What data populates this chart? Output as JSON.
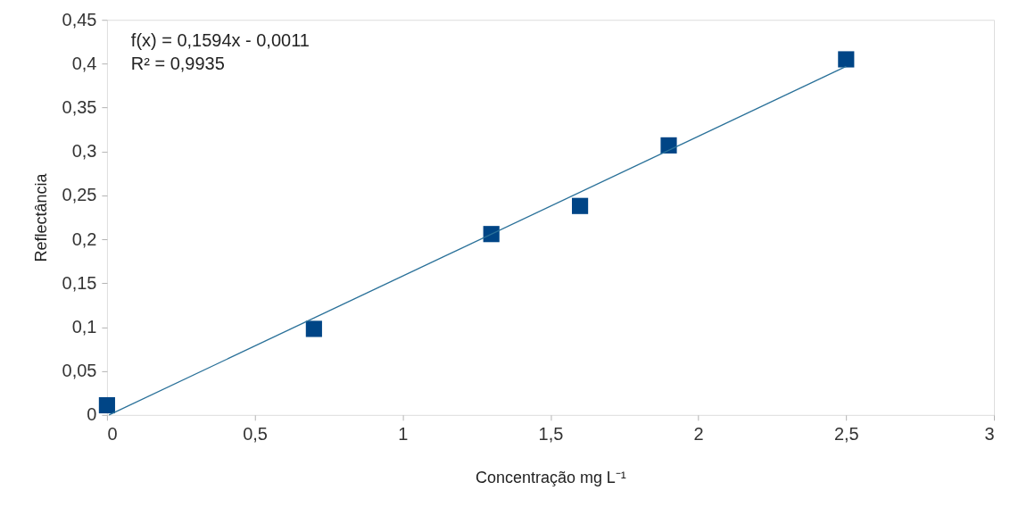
{
  "chart_data": {
    "type": "scatter",
    "xlabel": "Concentração mg L⁻¹",
    "ylabel": "Reflectância",
    "annotations": [
      "f(x) = 0,1594x - 0,0011",
      "R² = 0,9935"
    ],
    "series": [
      {
        "color": "#004586",
        "marker": "square",
        "x": [
          0,
          0.7,
          1.3,
          1.6,
          1.9,
          2.5
        ],
        "values": [
          0.011,
          0.098,
          0.206,
          0.238,
          0.307,
          0.405
        ]
      },
      {
        "type": "line",
        "color": "#2a7199",
        "marker": "none",
        "line_style": "solid",
        "x": [
          0.007,
          2.5
        ],
        "values": [
          0,
          0.397
        ]
      }
    ],
    "xlim": [
      0,
      3
    ],
    "ylim": [
      0,
      0.45
    ],
    "xticks": [
      0,
      {
        "value": 0.5,
        "label": "0,5"
      },
      1,
      {
        "value": 1.5,
        "label": "1,5"
      },
      2,
      {
        "value": 2.5,
        "label": "2,5"
      },
      3
    ],
    "yticks": [
      0,
      {
        "value": 0.05,
        "label": "0,05"
      },
      {
        "value": 0.1,
        "label": "0,1"
      },
      {
        "value": 0.15,
        "label": "0,15"
      },
      {
        "value": 0.2,
        "label": "0,2"
      },
      {
        "value": 0.25,
        "label": "0,25"
      },
      {
        "value": 0.3,
        "label": "0,3"
      },
      {
        "value": 0.35,
        "label": "0,35"
      },
      {
        "value": 0.4,
        "label": "0,4"
      },
      {
        "value": 0.45,
        "label": "0,45"
      }
    ],
    "grid": false,
    "legend": false
  }
}
